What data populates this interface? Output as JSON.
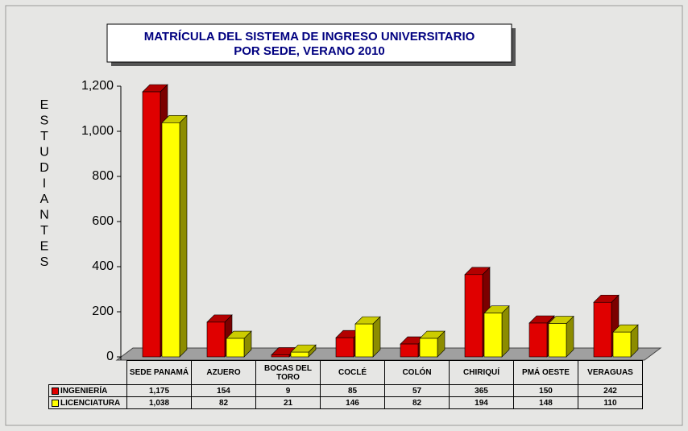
{
  "chart_data": {
    "type": "bar3d",
    "title": [
      "MATRÍCULA DEL SISTEMA  DE INGRESO UNIVERSITARIO",
      "POR SEDE,  VERANO 2010"
    ],
    "y_label": "ESTUDIANTES",
    "categories": [
      "SEDE PANAMÁ",
      "AZUERO",
      "BOCAS DEL TORO",
      "COCLÉ",
      "COLÓN",
      "CHIRIQUÍ",
      "PMÁ OESTE",
      "VERAGUAS"
    ],
    "series": [
      {
        "name": "INGENIERÍA",
        "color": "#e00000",
        "values": [
          1175,
          154,
          9,
          85,
          57,
          365,
          150,
          242
        ],
        "value_labels": [
          "1,175",
          "154",
          "9",
          "85",
          "57",
          "365",
          "150",
          "242"
        ]
      },
      {
        "name": "LICENCIATURA",
        "color": "#ffff00",
        "values": [
          1038,
          82,
          21,
          146,
          82,
          194,
          148,
          110
        ],
        "value_labels": [
          "1,038",
          "82",
          "21",
          "146",
          "82",
          "194",
          "148",
          "110"
        ]
      }
    ],
    "ylim": [
      0,
      1200
    ],
    "yticks": [
      0,
      200,
      400,
      600,
      800,
      {
        "value": 1000,
        "label": "1,000"
      },
      {
        "value": 1200,
        "label": "1,200"
      }
    ]
  }
}
